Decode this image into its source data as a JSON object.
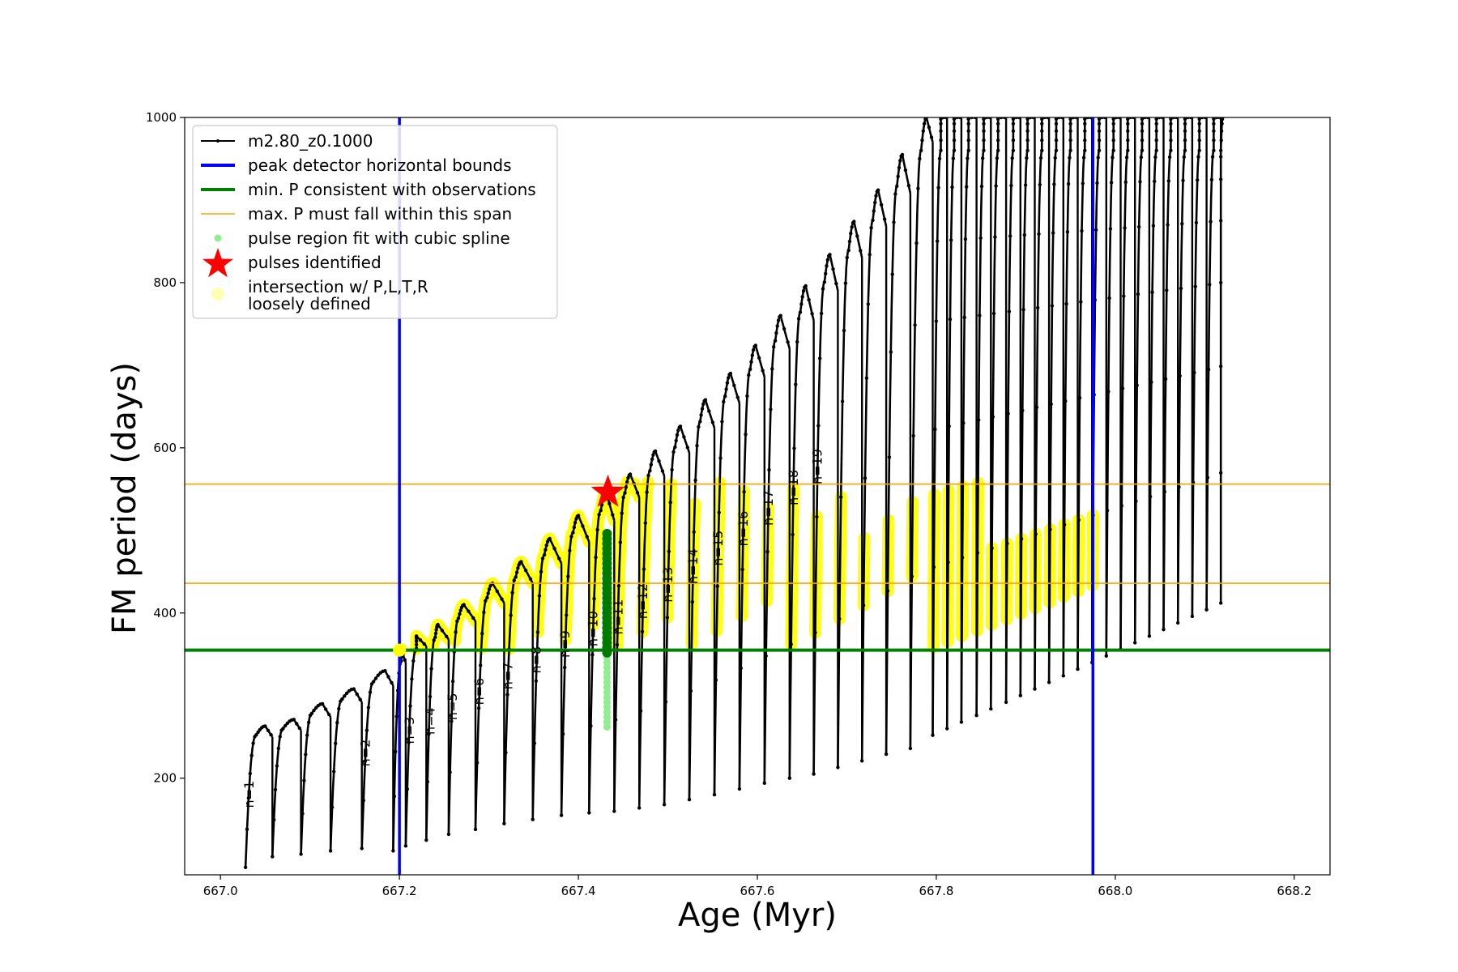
{
  "chart_data": {
    "type": "line",
    "xlabel": "Age (Myr)",
    "ylabel": "FM period (days)",
    "xlim": [
      666.96,
      668.24
    ],
    "ylim": [
      83,
      1000
    ],
    "xticks": [
      667.0,
      667.2,
      667.4,
      667.6,
      667.8,
      668.0,
      668.2
    ],
    "xtick_labels": [
      "667.0",
      "667.2",
      "667.4",
      "667.6",
      "667.8",
      "668.0",
      "668.2"
    ],
    "yticks": [
      200,
      400,
      600,
      800,
      1000
    ],
    "ytick_labels": [
      "200",
      "400",
      "600",
      "800",
      "1000"
    ],
    "grid": false,
    "legend_position": "top-left",
    "colors": {
      "track": "#000000",
      "bounds": "#0000ff",
      "min_p": "#008000",
      "max_p": "#ffa500",
      "spline_light": "#90ee90",
      "spline_dark": "#007a00",
      "pulse_star": "#ff0000",
      "intersection": "#ffff00"
    },
    "legend": [
      {
        "label": "m2.80_z0.1000",
        "kind": "line-dot",
        "color": "#000000"
      },
      {
        "label": "peak detector horizontal bounds",
        "kind": "line",
        "color": "#0000ff"
      },
      {
        "label": "min. P consistent with observations",
        "kind": "line",
        "color": "#008000"
      },
      {
        "label": "max. P must fall within this span",
        "kind": "thin-line",
        "color": "#ffa500"
      },
      {
        "label": "pulse region fit with cubic spline",
        "kind": "dot",
        "color": "#90ee90"
      },
      {
        "label": "pulses identified",
        "kind": "star",
        "color": "#ff0000"
      },
      {
        "label": "intersection w/ P,L,T,R",
        "label2": "loosely defined",
        "kind": "big-dot",
        "color": "#ffffb3"
      }
    ],
    "vertical_bounds": [
      667.2,
      667.975
    ],
    "min_period": 355,
    "max_period_span": [
      436,
      556
    ],
    "track_series_name": "m2.80_z0.1000",
    "pulse_identified": {
      "age": 667.433,
      "period": 546
    },
    "cubic_spline_region": {
      "age": 667.432,
      "period_range": [
        262,
        498
      ],
      "dark_from": 352
    },
    "cycles": [
      {
        "start": 667.028,
        "min": 92,
        "peak": 263,
        "rise_end": 667.04,
        "peak_age": 667.05,
        "end": 667.058,
        "end_val": 250,
        "label": "n=1"
      },
      {
        "start": 667.058,
        "min": 105,
        "peak": 271,
        "rise_end": 667.07,
        "peak_age": 667.082,
        "end": 667.09,
        "end_val": 258,
        "label": ""
      },
      {
        "start": 667.09,
        "min": 108,
        "peak": 290,
        "rise_end": 667.102,
        "peak_age": 667.114,
        "end": 667.123,
        "end_val": 274,
        "label": ""
      },
      {
        "start": 667.123,
        "min": 112,
        "peak": 308,
        "rise_end": 667.136,
        "peak_age": 667.149,
        "end": 667.158,
        "end_val": 292,
        "label": ""
      },
      {
        "start": 667.158,
        "min": 115,
        "peak": 330,
        "rise_end": 667.171,
        "peak_age": 667.184,
        "end": 667.193,
        "end_val": 312,
        "label": "n=2"
      },
      {
        "start": 667.193,
        "min": 112,
        "peak": 356,
        "rise_end": 667.202,
        "peak_age": 667.202,
        "end": 667.207,
        "end_val": 340,
        "label": ""
      },
      {
        "start": 667.207,
        "min": 118,
        "peak": 372,
        "rise_end": 667.219,
        "peak_age": 667.219,
        "end": 667.23,
        "end_val": 360,
        "label": "n=3"
      },
      {
        "start": 667.23,
        "min": 125,
        "peak": 386,
        "rise_end": 667.24,
        "peak_age": 667.243,
        "end": 667.255,
        "end_val": 368,
        "label": "n=4"
      },
      {
        "start": 667.255,
        "min": 132,
        "peak": 410,
        "rise_end": 667.266,
        "peak_age": 667.272,
        "end": 667.285,
        "end_val": 390,
        "label": "n=5"
      },
      {
        "start": 667.285,
        "min": 138,
        "peak": 436,
        "rise_end": 667.298,
        "peak_age": 667.304,
        "end": 667.317,
        "end_val": 412,
        "label": "n=6"
      },
      {
        "start": 667.317,
        "min": 145,
        "peak": 462,
        "rise_end": 667.33,
        "peak_age": 667.336,
        "end": 667.349,
        "end_val": 436,
        "label": "n=7"
      },
      {
        "start": 667.349,
        "min": 150,
        "peak": 490,
        "rise_end": 667.362,
        "peak_age": 667.368,
        "end": 667.381,
        "end_val": 460,
        "label": "n=8"
      },
      {
        "start": 667.381,
        "min": 155,
        "peak": 518,
        "rise_end": 667.394,
        "peak_age": 667.4,
        "end": 667.412,
        "end_val": 486,
        "label": "n=9"
      },
      {
        "start": 667.412,
        "min": 158,
        "peak": 546,
        "rise_end": 667.425,
        "peak_age": 667.431,
        "end": 667.44,
        "end_val": 512,
        "label": "n=10"
      },
      {
        "start": 667.44,
        "min": 160,
        "peak": 568,
        "rise_end": 667.452,
        "peak_age": 667.458,
        "end": 667.468,
        "end_val": 540,
        "label": "n=11"
      },
      {
        "start": 667.468,
        "min": 164,
        "peak": 596,
        "rise_end": 667.48,
        "peak_age": 667.486,
        "end": 667.496,
        "end_val": 566,
        "label": "n=12"
      },
      {
        "start": 667.496,
        "min": 168,
        "peak": 626,
        "rise_end": 667.508,
        "peak_age": 667.514,
        "end": 667.524,
        "end_val": 594,
        "label": "n=13"
      },
      {
        "start": 667.524,
        "min": 174,
        "peak": 658,
        "rise_end": 667.536,
        "peak_age": 667.542,
        "end": 667.552,
        "end_val": 624,
        "label": "n=14"
      },
      {
        "start": 667.552,
        "min": 180,
        "peak": 690,
        "rise_end": 667.564,
        "peak_age": 667.57,
        "end": 667.58,
        "end_val": 654,
        "label": "n=15"
      },
      {
        "start": 667.58,
        "min": 187,
        "peak": 724,
        "rise_end": 667.592,
        "peak_age": 667.598,
        "end": 667.608,
        "end_val": 686,
        "label": "n=16"
      },
      {
        "start": 667.608,
        "min": 194,
        "peak": 760,
        "rise_end": 667.62,
        "peak_age": 667.626,
        "end": 667.636,
        "end_val": 720,
        "label": "n=17"
      },
      {
        "start": 667.636,
        "min": 200,
        "peak": 796,
        "rise_end": 667.648,
        "peak_age": 667.654,
        "end": 667.663,
        "end_val": 754,
        "label": "n=18"
      },
      {
        "start": 667.663,
        "min": 205,
        "peak": 834,
        "rise_end": 667.675,
        "peak_age": 667.681,
        "end": 667.69,
        "end_val": 790,
        "label": "n=19"
      },
      {
        "start": 667.69,
        "min": 213,
        "peak": 874,
        "rise_end": 667.702,
        "peak_age": 667.708,
        "end": 667.717,
        "end_val": 830,
        "label": ""
      },
      {
        "start": 667.717,
        "min": 221,
        "peak": 912,
        "rise_end": 667.729,
        "peak_age": 667.735,
        "end": 667.744,
        "end_val": 868,
        "label": ""
      },
      {
        "start": 667.744,
        "min": 229,
        "peak": 955,
        "rise_end": 667.756,
        "peak_age": 667.762,
        "end": 667.771,
        "end_val": 908,
        "label": ""
      },
      {
        "start": 667.771,
        "min": 236,
        "peak": 1000,
        "rise_end": 667.783,
        "peak_age": 667.789,
        "end": 667.796,
        "end_val": 970,
        "label": ""
      },
      {
        "start": 667.796,
        "min": 252,
        "peak": 1000,
        "rise_end": 667.805,
        "peak_age": 667.805,
        "end": 667.812,
        "end_val": 1000,
        "label": ""
      },
      {
        "start": 667.812,
        "min": 260,
        "peak": 1000,
        "rise_end": 667.82,
        "peak_age": 667.82,
        "end": 667.828,
        "end_val": 1000,
        "label": ""
      },
      {
        "start": 667.828,
        "min": 268,
        "peak": 1000,
        "rise_end": 667.836,
        "peak_age": 667.836,
        "end": 667.845,
        "end_val": 1000,
        "label": ""
      },
      {
        "start": 667.845,
        "min": 276,
        "peak": 1000,
        "rise_end": 667.853,
        "peak_age": 667.853,
        "end": 667.861,
        "end_val": 1000,
        "label": ""
      },
      {
        "start": 667.861,
        "min": 284,
        "peak": 1000,
        "rise_end": 667.869,
        "peak_age": 667.869,
        "end": 667.878,
        "end_val": 1000,
        "label": ""
      },
      {
        "start": 667.878,
        "min": 292,
        "peak": 1000,
        "rise_end": 667.886,
        "peak_age": 667.886,
        "end": 667.894,
        "end_val": 1000,
        "label": ""
      },
      {
        "start": 667.894,
        "min": 300,
        "peak": 1000,
        "rise_end": 667.902,
        "peak_age": 667.902,
        "end": 667.91,
        "end_val": 1000,
        "label": ""
      },
      {
        "start": 667.91,
        "min": 308,
        "peak": 1000,
        "rise_end": 667.918,
        "peak_age": 667.918,
        "end": 667.926,
        "end_val": 1000,
        "label": ""
      },
      {
        "start": 667.926,
        "min": 316,
        "peak": 1000,
        "rise_end": 667.934,
        "peak_age": 667.934,
        "end": 667.942,
        "end_val": 1000,
        "label": ""
      },
      {
        "start": 667.942,
        "min": 324,
        "peak": 1000,
        "rise_end": 667.95,
        "peak_age": 667.95,
        "end": 667.958,
        "end_val": 1000,
        "label": ""
      },
      {
        "start": 667.958,
        "min": 332,
        "peak": 1000,
        "rise_end": 667.966,
        "peak_age": 667.966,
        "end": 667.974,
        "end_val": 1000,
        "label": ""
      },
      {
        "start": 667.974,
        "min": 340,
        "peak": 1000,
        "rise_end": 667.982,
        "peak_age": 667.982,
        "end": 667.99,
        "end_val": 1000,
        "label": ""
      },
      {
        "start": 667.99,
        "min": 348,
        "peak": 1000,
        "rise_end": 667.998,
        "peak_age": 667.998,
        "end": 668.006,
        "end_val": 1000,
        "label": ""
      },
      {
        "start": 668.006,
        "min": 356,
        "peak": 1000,
        "rise_end": 668.014,
        "peak_age": 668.014,
        "end": 668.022,
        "end_val": 1000,
        "label": ""
      },
      {
        "start": 668.022,
        "min": 364,
        "peak": 1000,
        "rise_end": 668.03,
        "peak_age": 668.03,
        "end": 668.038,
        "end_val": 1000,
        "label": ""
      },
      {
        "start": 668.038,
        "min": 372,
        "peak": 1000,
        "rise_end": 668.046,
        "peak_age": 668.046,
        "end": 668.054,
        "end_val": 1000,
        "label": ""
      },
      {
        "start": 668.054,
        "min": 380,
        "peak": 1000,
        "rise_end": 668.062,
        "peak_age": 668.062,
        "end": 668.07,
        "end_val": 1000,
        "label": ""
      },
      {
        "start": 668.07,
        "min": 388,
        "peak": 1000,
        "rise_end": 668.078,
        "peak_age": 668.078,
        "end": 668.086,
        "end_val": 1000,
        "label": ""
      },
      {
        "start": 668.086,
        "min": 396,
        "peak": 1000,
        "rise_end": 668.094,
        "peak_age": 668.094,
        "end": 668.102,
        "end_val": 1000,
        "label": ""
      },
      {
        "start": 668.102,
        "min": 404,
        "peak": 1000,
        "rise_end": 668.11,
        "peak_age": 668.11,
        "end": 668.118,
        "end_val": 1000,
        "label": ""
      },
      {
        "start": 668.118,
        "min": 412,
        "peak": 1000,
        "rise_end": 668.118,
        "peak_age": 668.12,
        "end": 668.12,
        "end_val": 940,
        "label": ""
      }
    ]
  }
}
